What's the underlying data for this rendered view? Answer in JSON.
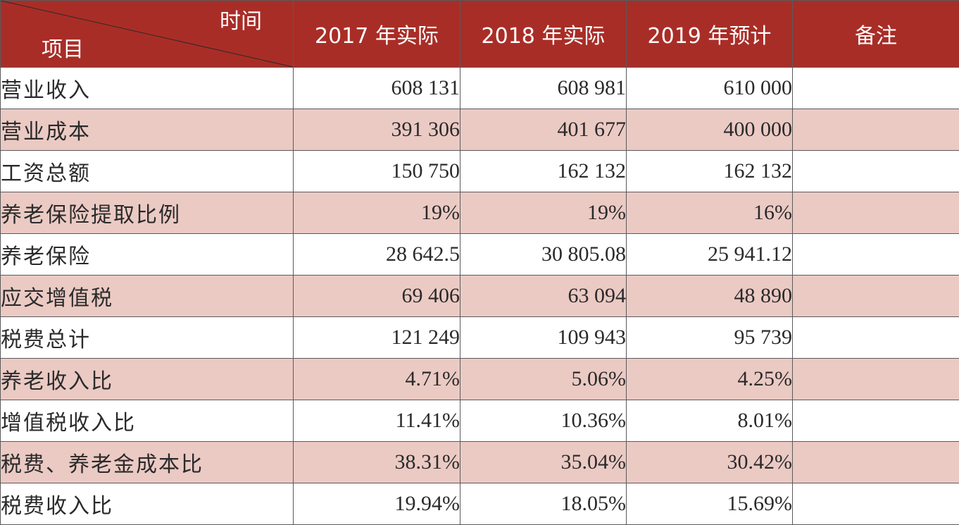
{
  "header": {
    "corner_top": "时间",
    "corner_bottom": "项目",
    "columns": [
      "2017 年实际",
      "2018 年实际",
      "2019 年预计",
      "备注"
    ]
  },
  "rows": [
    {
      "item": "营业收入",
      "y2017": "608 131",
      "y2018": "608 981",
      "y2019": "610 000",
      "note": ""
    },
    {
      "item": "营业成本",
      "y2017": "391 306",
      "y2018": "401 677",
      "y2019": "400 000",
      "note": ""
    },
    {
      "item": "工资总额",
      "y2017": "150 750",
      "y2018": "162 132",
      "y2019": "162 132",
      "note": ""
    },
    {
      "item": "养老保险提取比例",
      "y2017": "19%",
      "y2018": "19%",
      "y2019": "16%",
      "note": ""
    },
    {
      "item": "养老保险",
      "y2017": "28 642.5",
      "y2018": "30 805.08",
      "y2019": "25 941.12",
      "note": ""
    },
    {
      "item": "应交增值税",
      "y2017": "69 406",
      "y2018": "63 094",
      "y2019": "48 890",
      "note": ""
    },
    {
      "item": "税费总计",
      "y2017": "121 249",
      "y2018": "109 943",
      "y2019": "95 739",
      "note": ""
    },
    {
      "item": "养老收入比",
      "y2017": "4.71%",
      "y2018": "5.06%",
      "y2019": "4.25%",
      "note": ""
    },
    {
      "item": "增值税收入比",
      "y2017": "11.41%",
      "y2018": "10.36%",
      "y2019": "8.01%",
      "note": ""
    },
    {
      "item": "税费、养老金成本比",
      "y2017": "38.31%",
      "y2018": "35.04%",
      "y2019": "30.42%",
      "note": ""
    },
    {
      "item": "税费收入比",
      "y2017": "19.94%",
      "y2018": "18.05%",
      "y2019": "15.69%",
      "note": ""
    }
  ],
  "colors": {
    "header_bg": "#a92d27",
    "shaded_row_bg": "#ebcac4",
    "plain_row_bg": "#ffffff",
    "border": "#5a5a5a"
  }
}
